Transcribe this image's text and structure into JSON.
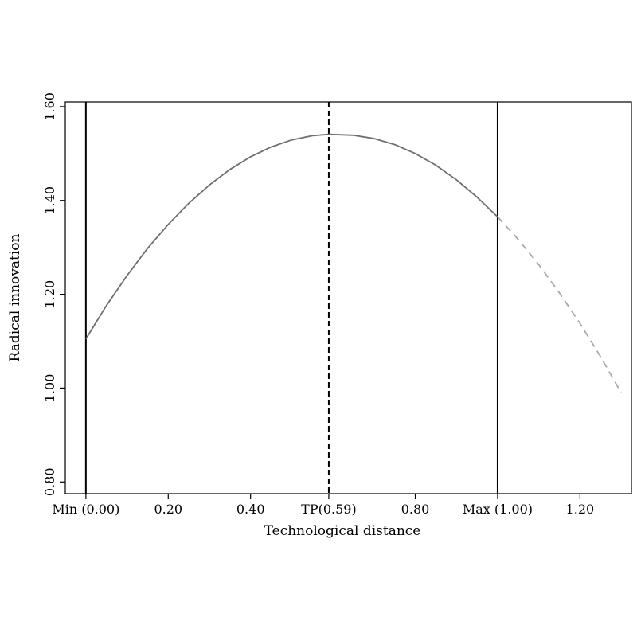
{
  "chart_data": {
    "type": "line",
    "xlabel": "Technological distance",
    "ylabel": "Radical innovation",
    "xlim": [
      -0.05,
      1.325
    ],
    "ylim": [
      0.775,
      1.61
    ],
    "x_ticks": [
      {
        "value": 0.0,
        "label": "Min (0.00)"
      },
      {
        "value": 0.2,
        "label": "0.20"
      },
      {
        "value": 0.4,
        "label": "0.40"
      },
      {
        "value": 0.59,
        "label": "TP(0.59)"
      },
      {
        "value": 0.8,
        "label": "0.80"
      },
      {
        "value": 1.0,
        "label": "Max (1.00)"
      },
      {
        "value": 1.2,
        "label": "1.20"
      }
    ],
    "y_ticks": [
      {
        "value": 0.8,
        "label": "0.80"
      },
      {
        "value": 1.0,
        "label": "1.00"
      },
      {
        "value": 1.2,
        "label": "1.20"
      },
      {
        "value": 1.4,
        "label": "1.40"
      },
      {
        "value": 1.6,
        "label": "1.60"
      }
    ],
    "series": [
      {
        "style": "solid",
        "color": "#6e6e6e",
        "x": [
          0.0,
          0.05,
          0.1,
          0.15,
          0.2,
          0.25,
          0.3,
          0.35,
          0.4,
          0.45,
          0.5,
          0.55,
          0.59,
          0.65,
          0.7,
          0.75,
          0.8,
          0.85,
          0.9,
          0.95,
          1.0
        ],
        "y": [
          1.105,
          1.176,
          1.24,
          1.298,
          1.349,
          1.394,
          1.433,
          1.466,
          1.493,
          1.514,
          1.529,
          1.538,
          1.541,
          1.539,
          1.532,
          1.519,
          1.5,
          1.475,
          1.444,
          1.407,
          1.365
        ]
      },
      {
        "style": "dashed",
        "color": "#a8a8a8",
        "x": [
          1.0,
          1.05,
          1.1,
          1.15,
          1.2,
          1.25,
          1.3
        ],
        "y": [
          1.365,
          1.317,
          1.263,
          1.203,
          1.138,
          1.067,
          0.99
        ]
      }
    ],
    "vlines": [
      {
        "x": 0.0,
        "style": "solid"
      },
      {
        "x": 0.59,
        "style": "dashed"
      },
      {
        "x": 1.0,
        "style": "solid"
      }
    ]
  }
}
